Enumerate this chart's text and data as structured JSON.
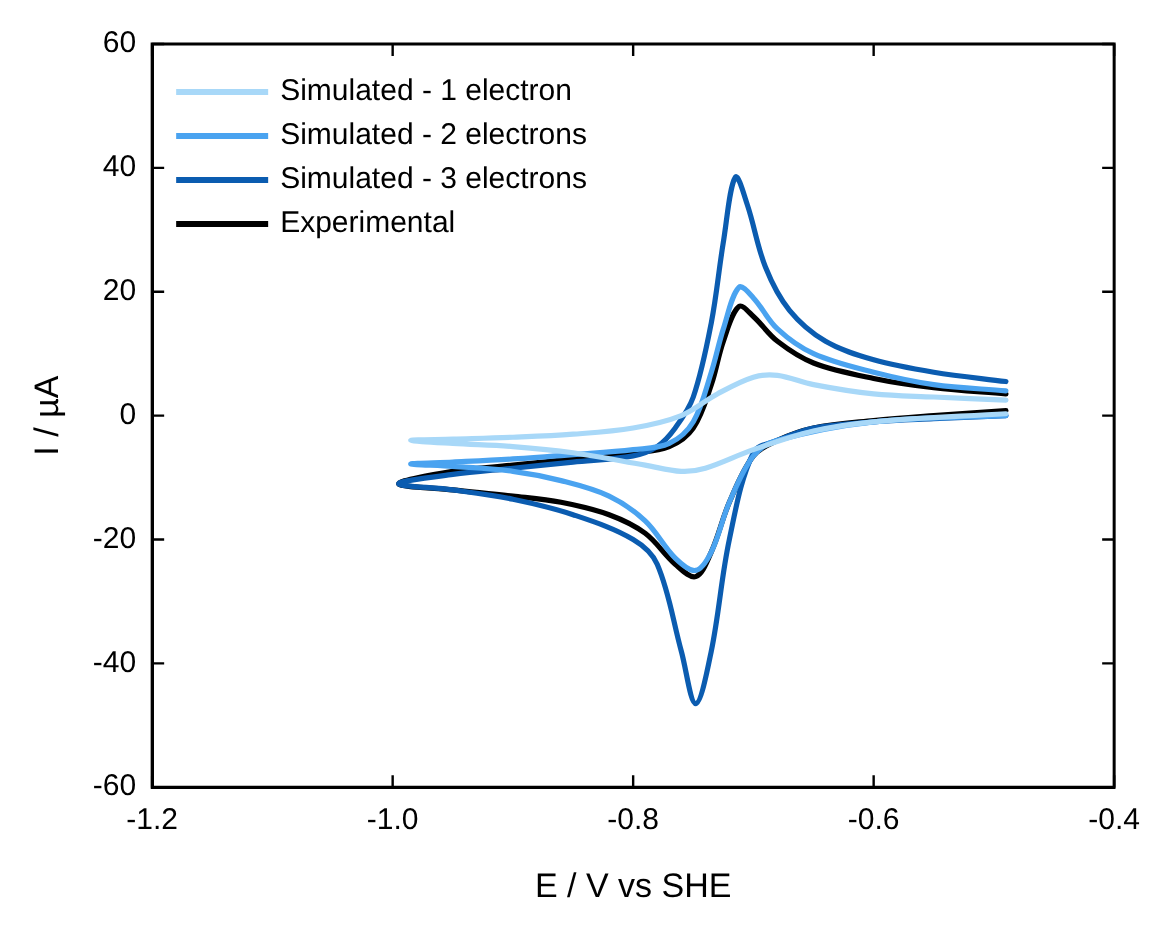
{
  "chart_data": {
    "type": "line",
    "xlabel": "E / V vs SHE",
    "ylabel": "I / µA",
    "xlim": [
      -1.2,
      -0.4
    ],
    "xticks": [
      -1.2,
      {
        "value": -1,
        "label": "-1.0"
      },
      -0.8,
      -0.6,
      -0.4
    ],
    "ylim": [
      -60,
      60
    ],
    "yticks": [
      -60,
      -40,
      -20,
      0,
      20,
      40,
      60
    ],
    "grid": false,
    "legend": "top left",
    "marker": "none",
    "line_style": "solid",
    "series": [
      {
        "name": "Simulated - 1 electron",
        "color": "#a8d8f8",
        "x": [
          -0.49,
          -0.6,
          -0.65,
          -0.7,
          -0.74,
          -0.76,
          -0.79,
          -0.85,
          -0.9,
          -0.95,
          -0.985,
          -0.95,
          -0.9,
          -0.85,
          -0.8,
          -0.76,
          -0.73,
          -0.7,
          -0.68,
          -0.65,
          -0.6,
          -0.55,
          -0.49
        ],
        "values": [
          0.3,
          -1,
          -2.5,
          -5.5,
          -8.5,
          -9,
          -8,
          -6,
          -5,
          -4.5,
          -4,
          -3.8,
          -3.5,
          -3,
          -2,
          0,
          3.5,
          6.2,
          6.5,
          5,
          3.5,
          3,
          2.5
        ]
      },
      {
        "name": "Simulated - 2 electrons",
        "color": "#4aa3f0",
        "x": [
          -0.49,
          -0.6,
          -0.68,
          -0.7,
          -0.72,
          -0.735,
          -0.748,
          -0.765,
          -0.79,
          -0.82,
          -0.86,
          -0.9,
          -0.95,
          -0.985,
          -0.95,
          -0.9,
          -0.85,
          -0.8,
          -0.77,
          -0.75,
          -0.735,
          -0.725,
          -0.712,
          -0.7,
          -0.68,
          -0.65,
          -0.6,
          -0.55,
          -0.49
        ],
        "values": [
          0,
          -1,
          -4,
          -6.5,
          -14,
          -22,
          -25,
          -23,
          -17,
          -13,
          -10.5,
          -9,
          -8.2,
          -7.8,
          -7.5,
          -7,
          -6.3,
          -5.5,
          -4.5,
          -1,
          7,
          14,
          20.7,
          19,
          14,
          10,
          7,
          5,
          4
        ]
      },
      {
        "name": "Simulated - 3 electrons",
        "color": "#0b5cb0",
        "x": [
          -0.49,
          -0.55,
          -0.6,
          -0.65,
          -0.68,
          -0.7,
          -0.72,
          -0.735,
          -0.748,
          -0.76,
          -0.78,
          -0.8,
          -0.85,
          -0.9,
          -0.95,
          -0.995,
          -0.95,
          -0.9,
          -0.85,
          -0.8,
          -0.78,
          -0.765,
          -0.75,
          -0.735,
          -0.725,
          -0.715,
          -0.705,
          -0.69,
          -0.67,
          -0.64,
          -0.6,
          -0.55,
          -0.49
        ],
        "values": [
          0,
          -0.5,
          -1,
          -2,
          -4,
          -6,
          -20,
          -38,
          -46.5,
          -38,
          -24,
          -20,
          -16,
          -13.5,
          -12,
          -11,
          -9.5,
          -8.5,
          -7.5,
          -6.5,
          -5,
          -2,
          3,
          15,
          28,
          38.5,
          34,
          24,
          17,
          12,
          9,
          7,
          5.5
        ]
      },
      {
        "name": "Experimental",
        "color": "#000000",
        "x": [
          -0.49,
          -0.55,
          -0.6,
          -0.65,
          -0.68,
          -0.7,
          -0.72,
          -0.735,
          -0.748,
          -0.765,
          -0.79,
          -0.82,
          -0.86,
          -0.9,
          -0.95,
          -0.995,
          -0.95,
          -0.9,
          -0.85,
          -0.8,
          -0.77,
          -0.75,
          -0.735,
          -0.725,
          -0.712,
          -0.7,
          -0.68,
          -0.65,
          -0.6,
          -0.55,
          -0.49
        ],
        "values": [
          0.8,
          0,
          -0.8,
          -2,
          -4,
          -6.5,
          -14,
          -22,
          -26,
          -24,
          -19,
          -16,
          -14,
          -13,
          -12,
          -11,
          -9,
          -8,
          -7,
          -6,
          -5,
          -2,
          5,
          12,
          17.6,
          16,
          12,
          8.5,
          6,
          4.5,
          3.5
        ]
      }
    ]
  }
}
